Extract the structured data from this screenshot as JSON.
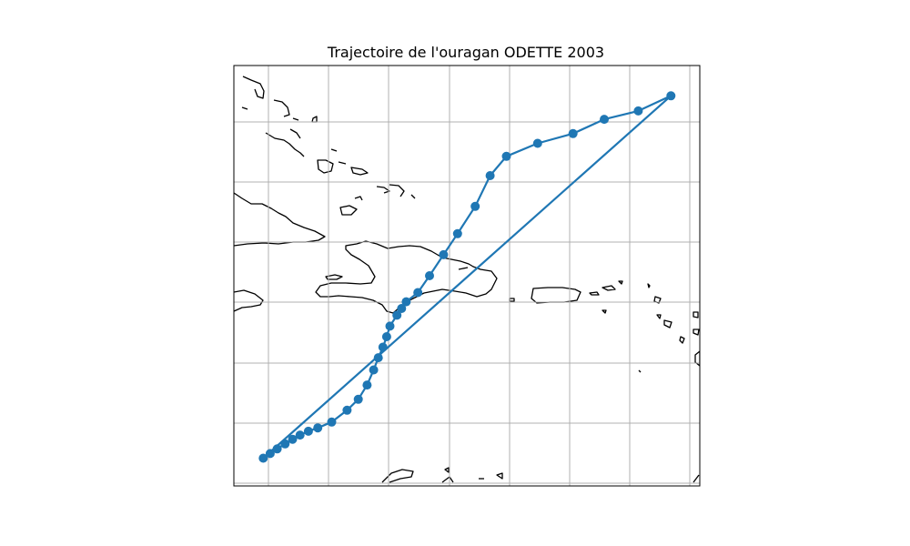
{
  "title": "Trajectoire de l'ouragan ODETTE 2003",
  "colors": {
    "track": "#1f77b4",
    "coast": "#000000",
    "grid": "#b0b0b0",
    "frame": "#000000"
  },
  "chart_data": {
    "type": "line",
    "title": "Trajectoire de l'ouragan ODETTE 2003",
    "grid": true,
    "axes_tick_labels_shown": false,
    "track_relative": [
      [
        0.063,
        0.934
      ],
      [
        0.078,
        0.923
      ],
      [
        0.093,
        0.912
      ],
      [
        0.11,
        0.9
      ],
      [
        0.126,
        0.889
      ],
      [
        0.142,
        0.879
      ],
      [
        0.16,
        0.87
      ],
      [
        0.18,
        0.862
      ],
      [
        0.21,
        0.848
      ],
      [
        0.243,
        0.82
      ],
      [
        0.267,
        0.794
      ],
      [
        0.286,
        0.76
      ],
      [
        0.3,
        0.724
      ],
      [
        0.31,
        0.695
      ],
      [
        0.32,
        0.67
      ],
      [
        0.328,
        0.645
      ],
      [
        0.335,
        0.62
      ],
      [
        0.35,
        0.594
      ],
      [
        0.36,
        0.578
      ],
      [
        0.37,
        0.562
      ],
      [
        0.395,
        0.54
      ],
      [
        0.42,
        0.5
      ],
      [
        0.45,
        0.45
      ],
      [
        0.48,
        0.4
      ],
      [
        0.518,
        0.335
      ],
      [
        0.55,
        0.262
      ],
      [
        0.585,
        0.216
      ],
      [
        0.652,
        0.185
      ],
      [
        0.728,
        0.162
      ],
      [
        0.795,
        0.128
      ],
      [
        0.868,
        0.108
      ],
      [
        0.938,
        0.072
      ],
      [
        0.063,
        0.934
      ]
    ]
  }
}
